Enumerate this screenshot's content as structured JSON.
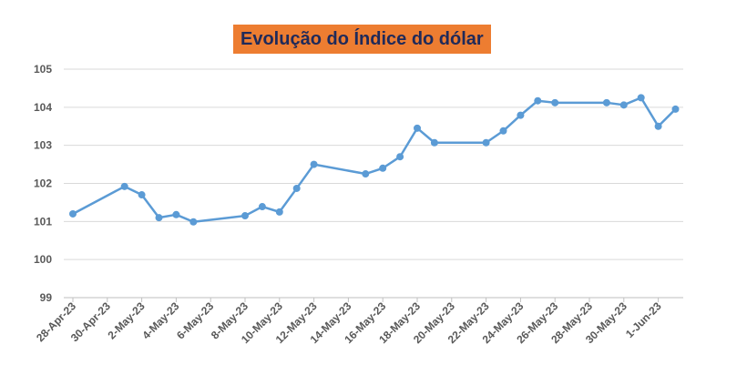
{
  "chart_data": {
    "type": "line",
    "title": "Evolução do Índice do dólar",
    "xlabel": "",
    "ylabel": "",
    "ylim": [
      99,
      105
    ],
    "yticks": [
      "99",
      "100",
      "101",
      "102",
      "103",
      "104",
      "105"
    ],
    "xticks": [
      "28-Apr-23",
      "30-Apr-23",
      "2-May-23",
      "4-May-23",
      "6-May-23",
      "8-May-23",
      "10-May-23",
      "12-May-23",
      "14-May-23",
      "16-May-23",
      "18-May-23",
      "20-May-23",
      "22-May-23",
      "24-May-23",
      "26-May-23",
      "28-May-23",
      "30-May-23",
      "1-Jun-23"
    ],
    "grid": true,
    "series": [
      {
        "name": "Índice do dólar",
        "color": "#5B9BD5",
        "x": [
          "28-Apr-23",
          "1-May-23",
          "2-May-23",
          "3-May-23",
          "4-May-23",
          "5-May-23",
          "8-May-23",
          "9-May-23",
          "10-May-23",
          "11-May-23",
          "12-May-23",
          "15-May-23",
          "16-May-23",
          "17-May-23",
          "18-May-23",
          "19-May-23",
          "22-May-23",
          "23-May-23",
          "24-May-23",
          "25-May-23",
          "26-May-23",
          "29-May-23",
          "30-May-23",
          "31-May-23",
          "1-Jun-23",
          "2-Jun-23"
        ],
        "day_offset": [
          0,
          3,
          4,
          5,
          6,
          7,
          10,
          11,
          12,
          13,
          14,
          17,
          18,
          19,
          20,
          21,
          24,
          25,
          26,
          27,
          28,
          31,
          32,
          33,
          34,
          35
        ],
        "values": [
          101.2,
          101.92,
          101.7,
          101.1,
          101.18,
          100.99,
          101.15,
          101.39,
          101.25,
          101.87,
          102.5,
          102.25,
          102.4,
          102.7,
          103.45,
          103.07,
          103.07,
          103.38,
          103.79,
          104.17,
          104.12,
          104.12,
          104.06,
          104.25,
          103.5,
          103.95
        ]
      }
    ]
  }
}
